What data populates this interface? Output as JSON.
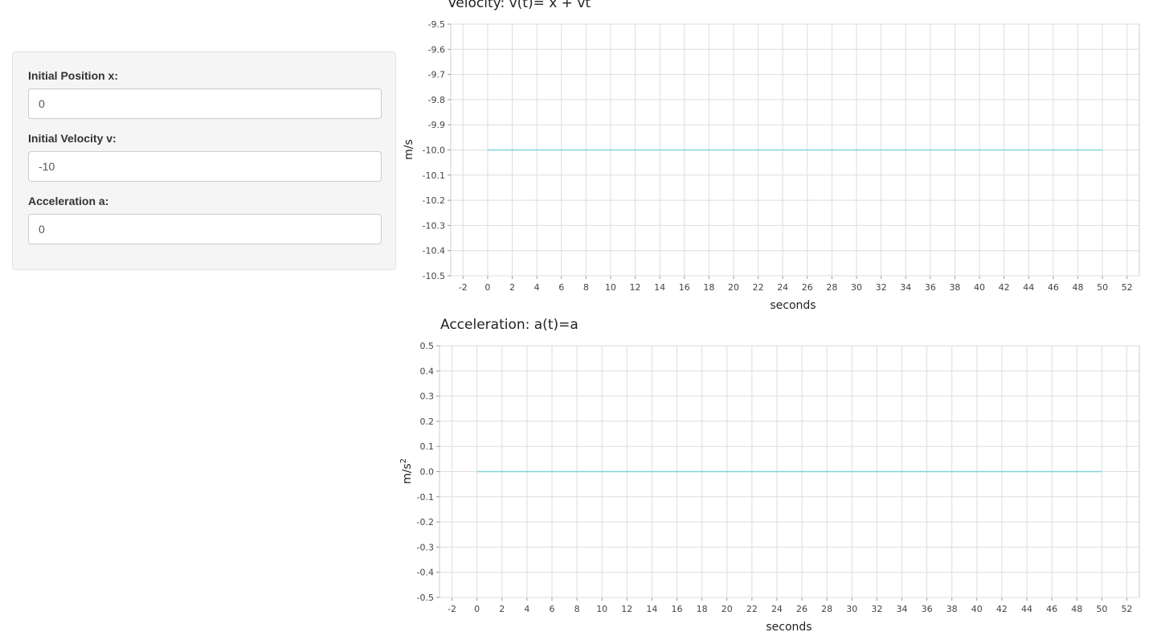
{
  "inputs": {
    "position": {
      "label": "Initial Position x:",
      "value": "0"
    },
    "velocity": {
      "label": "Initial Velocity v:",
      "value": "-10"
    },
    "acceleration": {
      "label": "Acceleration a:",
      "value": "0"
    }
  },
  "colors": {
    "line": "#7fd3dc",
    "grid": "#dddddd",
    "frame": "#cccccc"
  },
  "chart_data": [
    {
      "type": "line",
      "title": "Velocity: v(t)= x + vt",
      "xlabel": "seconds",
      "ylabel": "m/s",
      "xlim": [
        -3,
        53
      ],
      "ylim": [
        -10.5,
        -9.5
      ],
      "x_ticks": [
        -2,
        0,
        2,
        4,
        6,
        8,
        10,
        12,
        14,
        16,
        18,
        20,
        22,
        24,
        26,
        28,
        30,
        32,
        34,
        36,
        38,
        40,
        42,
        44,
        46,
        48,
        50,
        52
      ],
      "y_ticks": [
        "-9.5",
        "-9.6",
        "-9.7",
        "-9.8",
        "-9.9",
        "-10.0",
        "-10.1",
        "-10.2",
        "-10.3",
        "-10.4",
        "-10.5"
      ],
      "grid": true,
      "series": [
        {
          "x": [
            0,
            50
          ],
          "y": [
            -10,
            -10
          ]
        }
      ]
    },
    {
      "type": "line",
      "title": "Acceleration: a(t)=a",
      "xlabel": "seconds",
      "ylabel": "m/s",
      "ylabel_sup": "2",
      "xlim": [
        -3,
        53
      ],
      "ylim": [
        -0.5,
        0.5
      ],
      "x_ticks": [
        -2,
        0,
        2,
        4,
        6,
        8,
        10,
        12,
        14,
        16,
        18,
        20,
        22,
        24,
        26,
        28,
        30,
        32,
        34,
        36,
        38,
        40,
        42,
        44,
        46,
        48,
        50,
        52
      ],
      "y_ticks": [
        "0.5",
        "0.4",
        "0.3",
        "0.2",
        "0.1",
        "0.0",
        "-0.1",
        "-0.2",
        "-0.3",
        "-0.4",
        "-0.5"
      ],
      "grid": true,
      "series": [
        {
          "x": [
            0,
            50
          ],
          "y": [
            0,
            0
          ]
        }
      ]
    }
  ]
}
